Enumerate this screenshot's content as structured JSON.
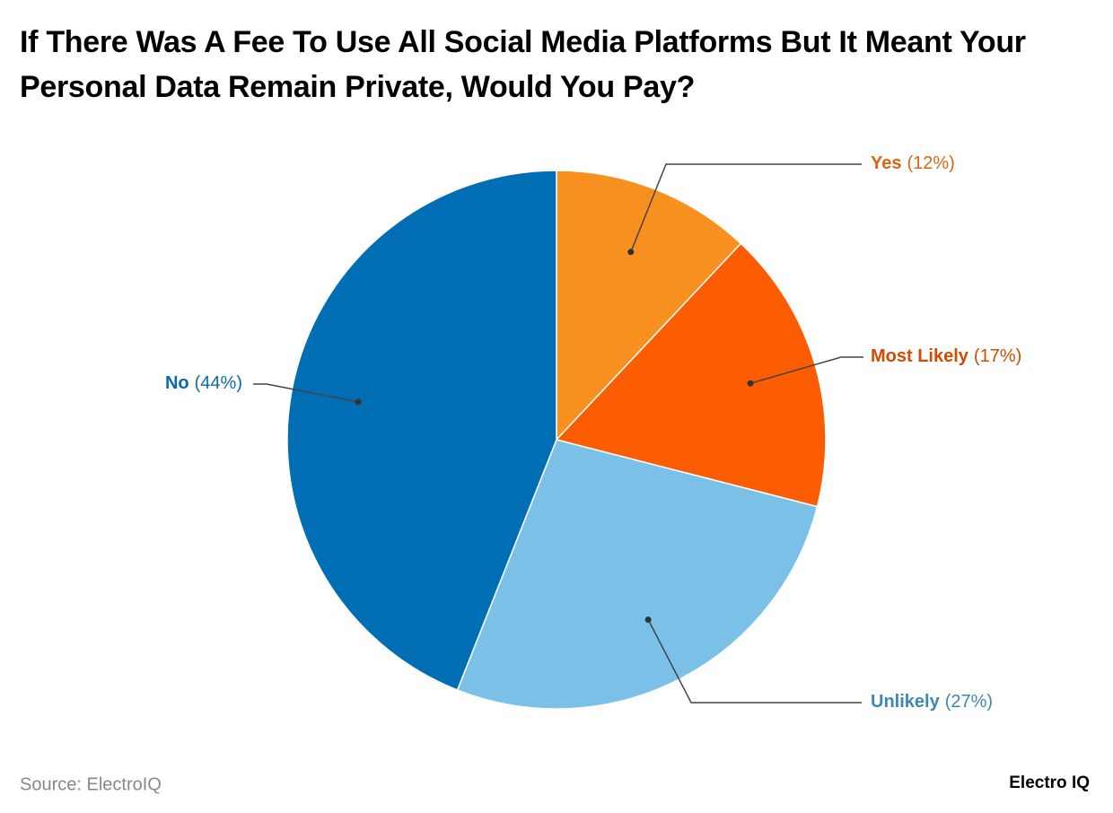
{
  "chart_data": {
    "type": "pie",
    "title": "If There Was A Fee To Use All Social Media Platforms But It Meant Your Personal Data Remain Private, Would You Pay?",
    "categories": [
      "Yes",
      "Most Likely",
      "Unlikely",
      "No"
    ],
    "values": [
      12,
      17,
      27,
      44
    ],
    "value_labels": [
      "(12%)",
      "(17%)",
      "(27%)",
      "(44%)"
    ],
    "colors": [
      "#f7901e",
      "#fd5d02",
      "#7bc0e7",
      "#006eb5"
    ],
    "label_colors": [
      "#d9650f",
      "#d14b00",
      "#3a88b5",
      "#0a6aae"
    ],
    "source": "Source: ElectroIQ",
    "brand": "Electro IQ"
  }
}
